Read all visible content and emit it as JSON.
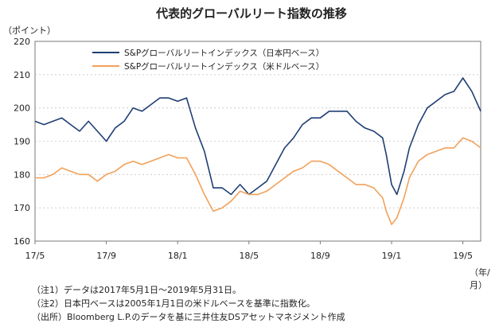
{
  "title": "代表的グローバルリート指数の推移",
  "y_unit": "（ポイント）",
  "x_unit": "（年/月）",
  "notes": [
    "（注1）データは2017年5月1日～2019年5月31日。",
    "（注2）日本円ベースは2005年1月1日の米ドルベースを基準に指数化。",
    "（出所）Bloomberg L.P.のデータを基に三井住友DSアセットマネジメント作成"
  ],
  "colors": {
    "series1": "#1f3f74",
    "series2": "#f2a15a",
    "axis": "#7a7a7a"
  },
  "chart_data": {
    "type": "line",
    "title": "代表的グローバルリート指数の推移",
    "xlabel": "（年/月）",
    "ylabel": "（ポイント）",
    "ylim": [
      160,
      220
    ],
    "yticks": [
      160,
      170,
      180,
      190,
      200,
      210,
      220
    ],
    "x_range": [
      0,
      25
    ],
    "xticks": [
      {
        "x": 0,
        "label": "17/5"
      },
      {
        "x": 4,
        "label": "17/9"
      },
      {
        "x": 8,
        "label": "18/1"
      },
      {
        "x": 12,
        "label": "18/5"
      },
      {
        "x": 16,
        "label": "18/9"
      },
      {
        "x": 20,
        "label": "19/1"
      },
      {
        "x": 24,
        "label": "19/5"
      }
    ],
    "legend": "top-left",
    "series": [
      {
        "name": "S&Pグローバルリートインデックス（日本円ベース）",
        "points": [
          [
            0,
            196
          ],
          [
            0.5,
            195
          ],
          [
            1,
            196
          ],
          [
            1.5,
            197
          ],
          [
            2,
            195
          ],
          [
            2.5,
            193
          ],
          [
            3,
            196
          ],
          [
            3.5,
            193
          ],
          [
            4,
            190
          ],
          [
            4.5,
            194
          ],
          [
            5,
            196
          ],
          [
            5.5,
            200
          ],
          [
            6,
            199
          ],
          [
            6.5,
            201
          ],
          [
            7,
            203
          ],
          [
            7.5,
            203
          ],
          [
            8,
            202
          ],
          [
            8.5,
            203
          ],
          [
            9,
            194
          ],
          [
            9.5,
            187
          ],
          [
            10,
            176
          ],
          [
            10.5,
            176
          ],
          [
            11,
            174
          ],
          [
            11.5,
            177
          ],
          [
            12,
            174
          ],
          [
            12.5,
            176
          ],
          [
            13,
            178
          ],
          [
            13.5,
            183
          ],
          [
            14,
            188
          ],
          [
            14.5,
            191
          ],
          [
            15,
            195
          ],
          [
            15.5,
            197
          ],
          [
            16,
            197
          ],
          [
            16.5,
            199
          ],
          [
            17,
            199
          ],
          [
            17.5,
            199
          ],
          [
            18,
            196
          ],
          [
            18.5,
            194
          ],
          [
            19,
            193
          ],
          [
            19.5,
            191
          ],
          [
            19.7,
            186
          ],
          [
            20,
            177
          ],
          [
            20.3,
            174
          ],
          [
            20.7,
            181
          ],
          [
            21,
            188
          ],
          [
            21.5,
            195
          ],
          [
            22,
            200
          ],
          [
            22.5,
            202
          ],
          [
            23,
            204
          ],
          [
            23.5,
            205
          ],
          [
            24,
            209
          ],
          [
            24.5,
            205
          ],
          [
            25,
            199
          ]
        ]
      },
      {
        "name": "S&Pグローバルリートインデックス（米ドルベース）",
        "points": [
          [
            0,
            179
          ],
          [
            0.5,
            179
          ],
          [
            1,
            180
          ],
          [
            1.5,
            182
          ],
          [
            2,
            181
          ],
          [
            2.5,
            180
          ],
          [
            3,
            180
          ],
          [
            3.5,
            178
          ],
          [
            4,
            180
          ],
          [
            4.5,
            181
          ],
          [
            5,
            183
          ],
          [
            5.5,
            184
          ],
          [
            6,
            183
          ],
          [
            6.5,
            184
          ],
          [
            7,
            185
          ],
          [
            7.5,
            186
          ],
          [
            8,
            185
          ],
          [
            8.5,
            185
          ],
          [
            9,
            180
          ],
          [
            9.5,
            174
          ],
          [
            10,
            169
          ],
          [
            10.5,
            170
          ],
          [
            11,
            172
          ],
          [
            11.5,
            175
          ],
          [
            12,
            174
          ],
          [
            12.5,
            174
          ],
          [
            13,
            175
          ],
          [
            13.5,
            177
          ],
          [
            14,
            179
          ],
          [
            14.5,
            181
          ],
          [
            15,
            182
          ],
          [
            15.5,
            184
          ],
          [
            16,
            184
          ],
          [
            16.5,
            183
          ],
          [
            17,
            181
          ],
          [
            17.5,
            179
          ],
          [
            18,
            177
          ],
          [
            18.5,
            177
          ],
          [
            19,
            176
          ],
          [
            19.5,
            173
          ],
          [
            19.7,
            169
          ],
          [
            20,
            165
          ],
          [
            20.3,
            167
          ],
          [
            20.7,
            173
          ],
          [
            21,
            179
          ],
          [
            21.5,
            184
          ],
          [
            22,
            186
          ],
          [
            22.5,
            187
          ],
          [
            23,
            188
          ],
          [
            23.5,
            188
          ],
          [
            24,
            191
          ],
          [
            24.5,
            190
          ],
          [
            25,
            188
          ]
        ]
      }
    ]
  }
}
